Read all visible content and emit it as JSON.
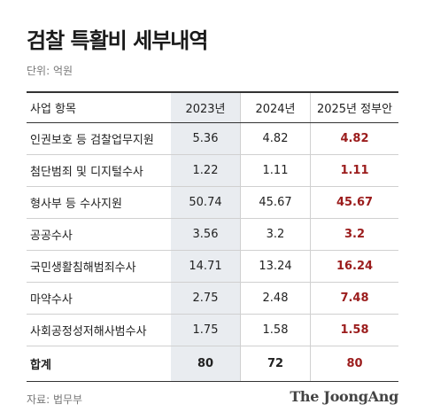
{
  "title": "검찰 특활비 세부내역",
  "unit": "단위: 억원",
  "headers": [
    "사업 항목",
    "2023년",
    "2024년",
    "2025년 정부안"
  ],
  "rows": [
    [
      "인권보호 등 검찰업무지원",
      "5.36",
      "4.82",
      "4.82"
    ],
    [
      "첨단범죄 및 디지털수사",
      "1.22",
      "1.11",
      "1.11"
    ],
    [
      "형사부 등 수사지원",
      "50.74",
      "45.67",
      "45.67"
    ],
    [
      "공공수사",
      "3.56",
      "3.2",
      "3.2"
    ],
    [
      "국민생활침해범죄수사",
      "14.71",
      "13.24",
      "16.24"
    ],
    [
      "마약수사",
      "2.75",
      "2.48",
      "7.48"
    ],
    [
      "사회공정성저해사범수사",
      "1.75",
      "1.58",
      "1.58"
    ]
  ],
  "total": [
    "합계",
    "80",
    "72",
    "80"
  ],
  "source": "자료: 법무부",
  "logo": "The JoongAng",
  "colors": {
    "highlight": "#9b1c1c",
    "shade": "#e9ecf0"
  }
}
